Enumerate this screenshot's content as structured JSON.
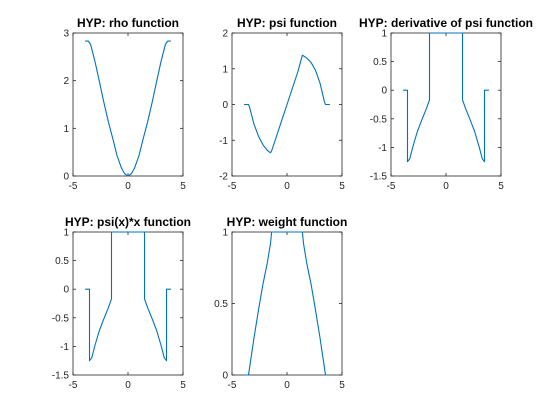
{
  "figure": {
    "background": "#ffffff"
  },
  "chart_data": [
    {
      "type": "line",
      "title": "HYP: rho function",
      "xlim": [
        -5,
        5
      ],
      "ylim": [
        0,
        3
      ],
      "xticks": [
        -5,
        0,
        5
      ],
      "yticks": [
        0,
        1,
        2,
        3
      ],
      "xtick_labels": [
        "-5",
        "0",
        "5"
      ],
      "ytick_labels": [
        "0",
        "1",
        "2",
        "3"
      ],
      "color": "#0072bd",
      "x": [
        -3.9,
        -3.6,
        -3.4,
        -3.0,
        -2.6,
        -2.2,
        -1.8,
        -1.4,
        -1.0,
        -0.6,
        -0.3,
        0.0,
        0.3,
        0.6,
        1.0,
        1.4,
        1.8,
        2.2,
        2.6,
        3.0,
        3.4,
        3.6,
        3.9
      ],
      "y": [
        2.83,
        2.83,
        2.76,
        2.4,
        1.98,
        1.55,
        1.15,
        0.8,
        0.43,
        0.17,
        0.045,
        0.0,
        0.045,
        0.17,
        0.43,
        0.8,
        1.15,
        1.55,
        1.98,
        2.4,
        2.76,
        2.83,
        2.83
      ]
    },
    {
      "type": "line",
      "title": "HYP: psi function",
      "xlim": [
        -5,
        5
      ],
      "ylim": [
        -2,
        2
      ],
      "xticks": [
        -5,
        0,
        5
      ],
      "yticks": [
        -2,
        -1,
        0,
        1,
        2
      ],
      "xtick_labels": [
        "-5",
        "0",
        "5"
      ],
      "ytick_labels": [
        "-2",
        "-1",
        "0",
        "1",
        "2"
      ],
      "color": "#0072bd",
      "x": [
        -3.9,
        -3.5,
        -3.4,
        -3.0,
        -2.6,
        -2.2,
        -1.8,
        -1.5,
        -1.4,
        -1.0,
        0.0,
        1.0,
        1.4,
        1.5,
        1.8,
        2.2,
        2.6,
        3.0,
        3.4,
        3.5,
        3.9
      ],
      "y": [
        0.0,
        0.0,
        -0.08,
        -0.55,
        -0.88,
        -1.12,
        -1.28,
        -1.35,
        -1.3,
        -0.93,
        0.0,
        0.93,
        1.38,
        1.36,
        1.3,
        1.17,
        0.95,
        0.6,
        0.08,
        0.0,
        0.0
      ]
    },
    {
      "type": "line",
      "title": "HYP: derivative of  psi function",
      "xlim": [
        -5,
        5
      ],
      "ylim": [
        -1.5,
        1
      ],
      "xticks": [
        -5,
        0,
        5
      ],
      "yticks": [
        -1.5,
        -1,
        -0.5,
        0,
        0.5,
        1
      ],
      "xtick_labels": [
        "-5",
        "0",
        "5"
      ],
      "ytick_labels": [
        "-1.5",
        "-1",
        "-0.5",
        "0",
        "0.5",
        "1"
      ],
      "color": "#0072bd",
      "x": [
        -3.9,
        -3.5,
        -3.5,
        -3.3,
        -3.0,
        -2.6,
        -2.2,
        -1.8,
        -1.5,
        -1.5,
        -1.4,
        1.4,
        1.5,
        1.5,
        1.8,
        2.2,
        2.6,
        3.0,
        3.3,
        3.5,
        3.5,
        3.9
      ],
      "y": [
        0.0,
        0.0,
        -1.25,
        -1.2,
        -0.98,
        -0.72,
        -0.52,
        -0.33,
        -0.17,
        1.0,
        1.0,
        1.0,
        1.0,
        -0.17,
        -0.33,
        -0.52,
        -0.72,
        -0.98,
        -1.2,
        -1.25,
        0.0,
        0.0
      ]
    },
    {
      "type": "line",
      "title": "HYP: psi(x)*x function",
      "xlim": [
        -5,
        5
      ],
      "ylim": [
        -1.5,
        1
      ],
      "xticks": [
        -5,
        0,
        5
      ],
      "yticks": [
        -1.5,
        -1,
        -0.5,
        0,
        0.5,
        1
      ],
      "xtick_labels": [
        "-5",
        "0",
        "5"
      ],
      "ytick_labels": [
        "-1.5",
        "-1",
        "-0.5",
        "0",
        "0.5",
        "1"
      ],
      "color": "#0072bd",
      "x": [
        -3.9,
        -3.5,
        -3.5,
        -3.3,
        -3.0,
        -2.6,
        -2.2,
        -1.8,
        -1.5,
        -1.5,
        -1.4,
        1.4,
        1.5,
        1.5,
        1.8,
        2.2,
        2.6,
        3.0,
        3.3,
        3.5,
        3.5,
        3.9
      ],
      "y": [
        0.0,
        0.0,
        -1.25,
        -1.2,
        -0.98,
        -0.72,
        -0.52,
        -0.33,
        -0.17,
        1.0,
        1.0,
        1.0,
        1.0,
        -0.17,
        -0.33,
        -0.52,
        -0.72,
        -0.98,
        -1.2,
        -1.25,
        0.0,
        0.0
      ]
    },
    {
      "type": "line",
      "title": "HYP: weight function",
      "xlim": [
        -5,
        5
      ],
      "ylim": [
        0,
        1
      ],
      "xticks": [
        -5,
        0,
        5
      ],
      "yticks": [
        0,
        0.5,
        1
      ],
      "xtick_labels": [
        "-5",
        "0",
        "5"
      ],
      "ytick_labels": [
        "0",
        "0.5",
        "1"
      ],
      "color": "#0072bd",
      "x": [
        -3.9,
        -3.5,
        -3.0,
        -2.6,
        -2.2,
        -1.8,
        -1.5,
        -1.4,
        1.4,
        1.5,
        1.8,
        2.2,
        2.6,
        3.0,
        3.5,
        3.9
      ],
      "y": [
        0.0,
        0.0,
        0.26,
        0.45,
        0.63,
        0.78,
        0.92,
        1.0,
        1.0,
        0.92,
        0.78,
        0.63,
        0.45,
        0.26,
        0.0,
        0.0
      ]
    }
  ]
}
